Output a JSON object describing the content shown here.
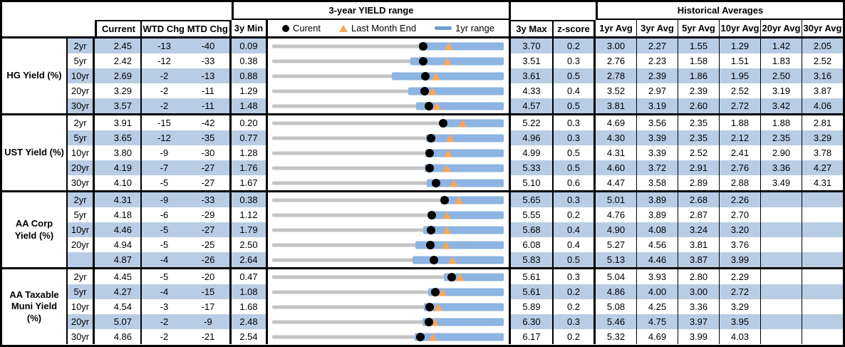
{
  "header": {
    "range_title": "3-year YIELD range",
    "historical_title": "Historical Averages",
    "col_current": "Current",
    "col_wtd": "WTD Chg",
    "col_mtd": "MTD Chg",
    "col_min": "3y Min",
    "col_max": "3y Max",
    "col_zscore": "z-score",
    "avg_cols": [
      "1yr Avg",
      "3yr Avg",
      "5yr Avg",
      "10yr Avg",
      "20yr Avg",
      "30yr Avg"
    ],
    "legend": {
      "current": "Curent",
      "last_month": "Last Month End",
      "range_1yr": "1yr range"
    }
  },
  "colors": {
    "row_stripe": "#B8CCE4",
    "bar_1yr_range": "#8DB4E2",
    "bar_3yr_range": "#C4C4C4",
    "marker_current": "#000000",
    "marker_last_month_end": "#F9A65B"
  },
  "chart_data": {
    "type": "range",
    "description": "Per-row horizontal range chart: gray bar spans 3y Min to 3y Max, blue bar is the 1yr range (ends at 3y Max), black dot = Current, orange triangle = Last Month End",
    "groups": [
      {
        "name": "HG Yield (%)",
        "rows": [
          {
            "tenor": "2yr",
            "current": "2.45",
            "wtd_chg": "-13",
            "mtd_chg": "-40",
            "min_3y": "0.09",
            "max_3y": "3.70",
            "z_score": "0.2",
            "low_1y": 2.38,
            "last_month_end": 2.85,
            "averages": [
              "3.00",
              "2.27",
              "1.55",
              "1.29",
              "1.42",
              "2.05"
            ]
          },
          {
            "tenor": "5yr",
            "current": "2.42",
            "wtd_chg": "-12",
            "mtd_chg": "-33",
            "min_3y": "0.38",
            "max_3y": "3.51",
            "z_score": "0.3",
            "low_1y": 2.25,
            "last_month_end": 2.75,
            "averages": [
              "2.76",
              "2.23",
              "1.58",
              "1.51",
              "1.83",
              "2.52"
            ]
          },
          {
            "tenor": "10yr",
            "current": "2.69",
            "wtd_chg": "-2",
            "mtd_chg": "-13",
            "min_3y": "0.88",
            "max_3y": "3.61",
            "z_score": "0.5",
            "low_1y": 2.29,
            "last_month_end": 2.82,
            "averages": [
              "2.78",
              "2.39",
              "1.86",
              "1.95",
              "2.50",
              "3.16"
            ]
          },
          {
            "tenor": "20yr",
            "current": "3.29",
            "wtd_chg": "-2",
            "mtd_chg": "-11",
            "min_3y": "1.29",
            "max_3y": "4.33",
            "z_score": "0.4",
            "low_1y": 3.08,
            "last_month_end": 3.4,
            "averages": [
              "3.52",
              "2.97",
              "2.39",
              "2.52",
              "3.19",
              "3.87"
            ]
          },
          {
            "tenor": "30yr",
            "current": "3.57",
            "wtd_chg": "-2",
            "mtd_chg": "-11",
            "min_3y": "1.48",
            "max_3y": "4.57",
            "z_score": "0.5",
            "low_1y": 3.4,
            "last_month_end": 3.68,
            "averages": [
              "3.81",
              "3.19",
              "2.60",
              "2.72",
              "3.42",
              "4.06"
            ]
          }
        ]
      },
      {
        "name": "UST Yield (%)",
        "rows": [
          {
            "tenor": "2yr",
            "current": "3.91",
            "wtd_chg": "-15",
            "mtd_chg": "-42",
            "min_3y": "0.20",
            "max_3y": "5.22",
            "z_score": "0.3",
            "low_1y": 3.84,
            "last_month_end": 4.33,
            "averages": [
              "4.69",
              "3.56",
              "2.35",
              "1.88",
              "1.88",
              "2.81"
            ]
          },
          {
            "tenor": "5yr",
            "current": "3.65",
            "wtd_chg": "-12",
            "mtd_chg": "-35",
            "min_3y": "0.77",
            "max_3y": "4.96",
            "z_score": "0.3",
            "low_1y": 3.56,
            "last_month_end": 4.0,
            "averages": [
              "4.30",
              "3.39",
              "2.35",
              "2.12",
              "2.35",
              "3.29"
            ]
          },
          {
            "tenor": "10yr",
            "current": "3.80",
            "wtd_chg": "-9",
            "mtd_chg": "-30",
            "min_3y": "1.28",
            "max_3y": "4.99",
            "z_score": "0.5",
            "low_1y": 3.74,
            "last_month_end": 4.1,
            "averages": [
              "4.31",
              "3.39",
              "2.52",
              "2.41",
              "2.90",
              "3.78"
            ]
          },
          {
            "tenor": "20yr",
            "current": "4.19",
            "wtd_chg": "-7",
            "mtd_chg": "-27",
            "min_3y": "1.76",
            "max_3y": "5.33",
            "z_score": "0.5",
            "low_1y": 4.11,
            "last_month_end": 4.46,
            "averages": [
              "4.60",
              "3.72",
              "2.91",
              "2.76",
              "3.36",
              "4.27"
            ]
          },
          {
            "tenor": "30yr",
            "current": "4.10",
            "wtd_chg": "-5",
            "mtd_chg": "-27",
            "min_3y": "1.67",
            "max_3y": "5.10",
            "z_score": "0.6",
            "low_1y": 3.96,
            "last_month_end": 4.37,
            "averages": [
              "4.47",
              "3.58",
              "2.89",
              "2.88",
              "3.49",
              "4.31"
            ]
          }
        ]
      },
      {
        "name": "AA Corp Yield (%)",
        "rows": [
          {
            "tenor": "2yr",
            "current": "4.31",
            "wtd_chg": "-9",
            "mtd_chg": "-33",
            "min_3y": "0.38",
            "max_3y": "5.65",
            "z_score": "0.3",
            "low_1y": 4.23,
            "last_month_end": 4.64,
            "averages": [
              "5.01",
              "3.89",
              "2.68",
              "2.26",
              "",
              ""
            ]
          },
          {
            "tenor": "5yr",
            "current": "4.18",
            "wtd_chg": "-6",
            "mtd_chg": "-29",
            "min_3y": "1.12",
            "max_3y": "5.55",
            "z_score": "0.2",
            "low_1y": 4.1,
            "last_month_end": 4.47,
            "averages": [
              "4.76",
              "3.89",
              "2.87",
              "2.70",
              "",
              ""
            ]
          },
          {
            "tenor": "10yr",
            "current": "4.46",
            "wtd_chg": "-5",
            "mtd_chg": "-27",
            "min_3y": "1.79",
            "max_3y": "5.68",
            "z_score": "0.4",
            "low_1y": 4.33,
            "last_month_end": 4.73,
            "averages": [
              "4.90",
              "4.08",
              "3.24",
              "3.20",
              "",
              ""
            ]
          },
          {
            "tenor": "20yr",
            "current": "4.94",
            "wtd_chg": "-5",
            "mtd_chg": "-25",
            "min_3y": "2.50",
            "max_3y": "6.08",
            "z_score": "0.4",
            "low_1y": 4.71,
            "last_month_end": 5.19,
            "averages": [
              "5.27",
              "4.56",
              "3.81",
              "3.76",
              "",
              ""
            ]
          },
          {
            "tenor": "",
            "current": "4.87",
            "wtd_chg": "-4",
            "mtd_chg": "-26",
            "min_3y": "2.64",
            "max_3y": "5.83",
            "z_score": "0.5",
            "low_1y": 4.57,
            "last_month_end": 5.13,
            "averages": [
              "5.13",
              "4.46",
              "3.87",
              "3.99",
              "",
              ""
            ]
          }
        ]
      },
      {
        "name": "AA Taxable Muni Yield (%)",
        "rows": [
          {
            "tenor": "2yr",
            "current": "4.45",
            "wtd_chg": "-5",
            "mtd_chg": "-20",
            "min_3y": "0.47",
            "max_3y": "5.61",
            "z_score": "0.3",
            "low_1y": 4.28,
            "last_month_end": 4.65,
            "averages": [
              "5.04",
              "3.93",
              "2.80",
              "2.29",
              "",
              ""
            ]
          },
          {
            "tenor": "5yr",
            "current": "4.27",
            "wtd_chg": "-4",
            "mtd_chg": "-15",
            "min_3y": "1.08",
            "max_3y": "5.61",
            "z_score": "0.2",
            "low_1y": 4.13,
            "last_month_end": 4.42,
            "averages": [
              "4.86",
              "4.00",
              "3.00",
              "2.72",
              "",
              ""
            ]
          },
          {
            "tenor": "10yr",
            "current": "4.54",
            "wtd_chg": "-3",
            "mtd_chg": "-17",
            "min_3y": "1.68",
            "max_3y": "5.89",
            "z_score": "0.2",
            "low_1y": 4.44,
            "last_month_end": 4.71,
            "averages": [
              "5.08",
              "4.25",
              "3.36",
              "3.29",
              "",
              ""
            ]
          },
          {
            "tenor": "20yr",
            "current": "5.07",
            "wtd_chg": "-2",
            "mtd_chg": "-9",
            "min_3y": "2.48",
            "max_3y": "6.30",
            "z_score": "0.3",
            "low_1y": 4.96,
            "last_month_end": 5.16,
            "averages": [
              "5.46",
              "4.75",
              "3.97",
              "3.95",
              "",
              ""
            ]
          },
          {
            "tenor": "30yr",
            "current": "4.86",
            "wtd_chg": "-2",
            "mtd_chg": "-21",
            "min_3y": "2.54",
            "max_3y": "6.17",
            "z_score": "0.2",
            "low_1y": 4.77,
            "last_month_end": 5.07,
            "averages": [
              "5.32",
              "4.69",
              "3.99",
              "4.03",
              "",
              ""
            ]
          }
        ]
      }
    ]
  }
}
